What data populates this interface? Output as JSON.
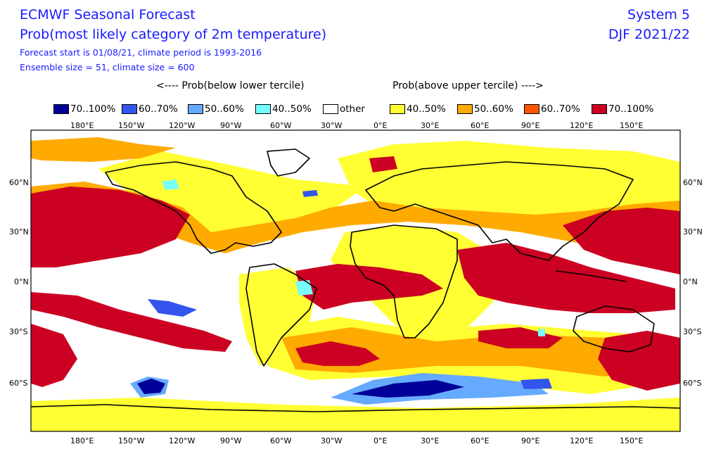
{
  "header": {
    "title": "ECMWF Seasonal Forecast",
    "subtitle": "Prob(most likely category of 2m temperature)",
    "forecast_info": "Forecast start is 01/08/21, climate period is 1993-2016",
    "ensemble_info": "Ensemble size = 51, climate size = 600",
    "system": "System 5",
    "season": "DJF 2021/22"
  },
  "legend": {
    "below_header": "<---- Prob(below lower tercile)",
    "above_header": "Prob(above upper tercile) ---->",
    "items": [
      {
        "label": "70..100%",
        "color": "#000099"
      },
      {
        "label": "60..70%",
        "color": "#3355ee"
      },
      {
        "label": "50..60%",
        "color": "#66aaff"
      },
      {
        "label": "40..50%",
        "color": "#77ffff"
      },
      {
        "label": "other",
        "color": "#ffffff"
      },
      {
        "label": "40..50%",
        "color": "#ffff33"
      },
      {
        "label": "50..60%",
        "color": "#ffaa00"
      },
      {
        "label": "60..70%",
        "color": "#ff5500"
      },
      {
        "label": "70..100%",
        "color": "#cc0022"
      }
    ]
  },
  "map": {
    "lon_ticks": [
      "180°E",
      "150°W",
      "120°W",
      "90°W",
      "60°W",
      "30°W",
      "0°E",
      "30°E",
      "60°E",
      "90°E",
      "120°E",
      "150°E"
    ],
    "lat_ticks": [
      "60°N",
      "30°N",
      "0°N",
      "30°S",
      "60°S"
    ]
  }
}
